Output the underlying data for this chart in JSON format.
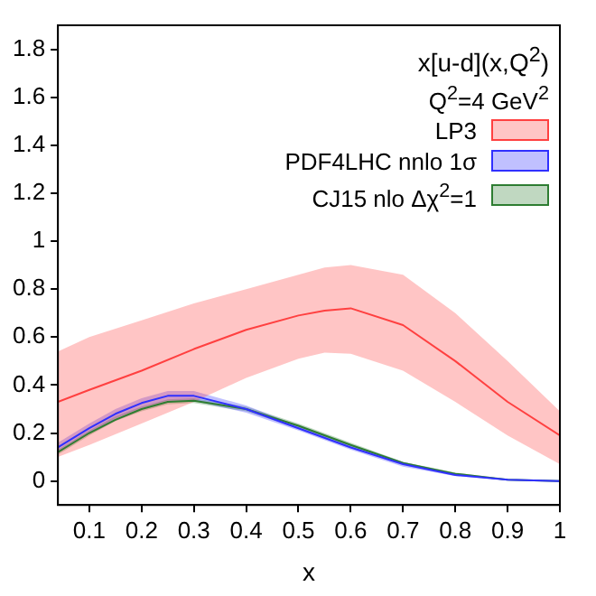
{
  "chart_data": {
    "type": "line",
    "xlabel": "x",
    "legend_title": "x[u-d](x,Q$^{2}$)",
    "annotations": [
      "Q$^{2}$=4 GeV$^{2}$"
    ],
    "xlim": [
      0.04,
      1
    ],
    "xticks": [
      0.1,
      0.2,
      0.3,
      0.4,
      0.5,
      0.6,
      0.7,
      0.8,
      0.9,
      1
    ],
    "ylim": [
      -0.1,
      1.9
    ],
    "yticks": [
      0,
      0.2,
      0.4,
      0.6,
      0.8,
      1,
      1.2,
      1.4,
      1.6,
      1.8
    ],
    "grid": false,
    "legend": "top right",
    "marker": "none",
    "line_style": "solid",
    "series": [
      {
        "name": "LP3",
        "color": "#ff4040",
        "x": [
          0.04,
          0.1,
          0.2,
          0.3,
          0.4,
          0.5,
          0.55,
          0.6,
          0.7,
          0.8,
          0.9,
          1
        ],
        "values": [
          0.33,
          0.38,
          0.46,
          0.55,
          0.63,
          0.69,
          0.71,
          0.72,
          0.65,
          0.5,
          0.33,
          0.19
        ],
        "lower": [
          0.1,
          0.15,
          0.24,
          0.33,
          0.43,
          0.51,
          0.535,
          0.53,
          0.46,
          0.33,
          0.19,
          0.07
        ],
        "upper": [
          0.54,
          0.6,
          0.67,
          0.74,
          0.8,
          0.86,
          0.89,
          0.9,
          0.86,
          0.7,
          0.5,
          0.29
        ]
      },
      {
        "name": "PDF4LHC nnlo 1σ",
        "color": "#3030ff",
        "x": [
          0.04,
          0.1,
          0.15,
          0.2,
          0.25,
          0.3,
          0.4,
          0.5,
          0.6,
          0.7,
          0.8,
          0.9,
          1
        ],
        "values": [
          0.14,
          0.22,
          0.28,
          0.325,
          0.355,
          0.355,
          0.3,
          0.22,
          0.14,
          0.07,
          0.025,
          0.005,
          0
        ],
        "lower": [
          0.12,
          0.2,
          0.26,
          0.305,
          0.335,
          0.335,
          0.285,
          0.21,
          0.13,
          0.06,
          0.02,
          0.003,
          0
        ],
        "upper": [
          0.16,
          0.24,
          0.3,
          0.345,
          0.375,
          0.375,
          0.315,
          0.23,
          0.15,
          0.08,
          0.03,
          0.007,
          0
        ]
      },
      {
        "name": "CJ15 nlo Δχ$^{2}$=1",
        "color": "#2e7d32",
        "x": [
          0.04,
          0.1,
          0.15,
          0.2,
          0.25,
          0.3,
          0.4,
          0.5,
          0.6,
          0.7,
          0.8,
          0.9,
          1
        ],
        "values": [
          0.12,
          0.2,
          0.255,
          0.3,
          0.33,
          0.335,
          0.3,
          0.23,
          0.15,
          0.075,
          0.03,
          0.005,
          0
        ],
        "lower": [
          0.11,
          0.19,
          0.25,
          0.29,
          0.32,
          0.325,
          0.29,
          0.22,
          0.14,
          0.07,
          0.025,
          0.003,
          0
        ],
        "upper": [
          0.13,
          0.21,
          0.27,
          0.31,
          0.34,
          0.345,
          0.31,
          0.24,
          0.16,
          0.08,
          0.035,
          0.007,
          0
        ]
      }
    ]
  }
}
